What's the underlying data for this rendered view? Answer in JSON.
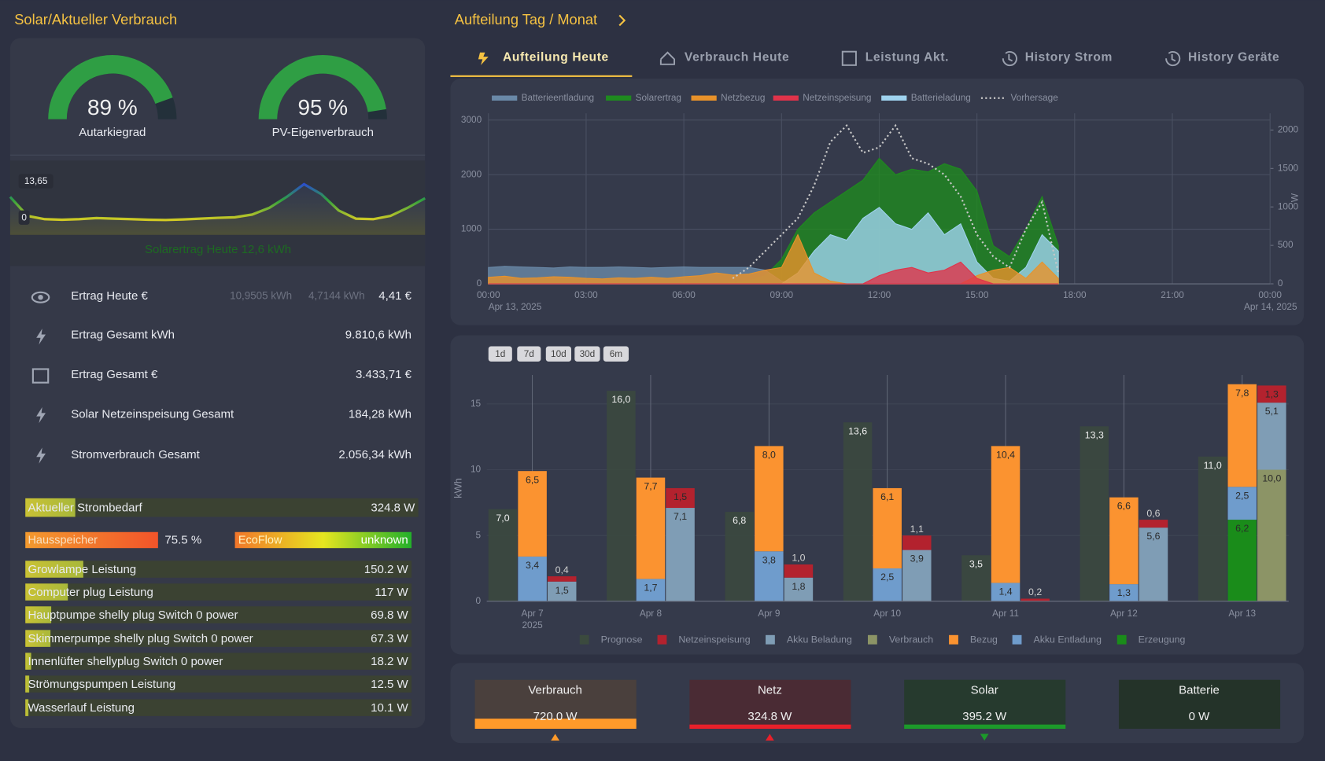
{
  "left_panel": {
    "title": "Solar/Aktueller Verbrauch",
    "gauges": [
      {
        "value": 89,
        "value_label": "89 %",
        "label": "Autarkiegrad"
      },
      {
        "value": 95,
        "value_label": "95 %",
        "label": "PV-Eigenverbrauch"
      }
    ],
    "sparkline": {
      "values": [
        9,
        2,
        0.8,
        0.6,
        0.8,
        1.2,
        1,
        0.8,
        0.6,
        0.5,
        0.7,
        1,
        1.3,
        1.5,
        2.5,
        5,
        9,
        13.65,
        10,
        4,
        1,
        0.8,
        2,
        5,
        8.5
      ],
      "yticks": [
        {
          "value": 0,
          "label": "0"
        },
        {
          "value": 13.65,
          "label": "13,65"
        }
      ],
      "caption": "Solarertrag Heute 12,6 kWh"
    },
    "rows": [
      {
        "label": "Ertrag Heute €",
        "details": [
          "10,9505 kWh",
          "4,7144 kWh"
        ],
        "value": "4,41 €"
      },
      {
        "label": "Ertrag Gesamt kWh",
        "value": "9.810,6 kWh"
      },
      {
        "label": "Ertrag Gesamt €",
        "value": "3.433,71 €"
      },
      {
        "label": "Solar Netzeinspeisung Gesamt",
        "value": "184,28 kWh"
      },
      {
        "label": "Stromverbrauch Gesamt",
        "value": "2.056,34 kWh"
      }
    ],
    "strombedarf": {
      "label": "Aktueller Strombedarf",
      "value": "324.8 W",
      "level": 12.7
    },
    "hausspeicher": {
      "label": "Hausspeicher",
      "value": "75.5 %"
    },
    "ecoflow": {
      "label": "EcoFlow",
      "value": "unknown"
    },
    "devices": [
      {
        "label": "Growlampe Leistung",
        "value": "150.2 W",
        "level": 15
      },
      {
        "label": "Computer plug Leistung",
        "value": "117 W",
        "level": 11
      },
      {
        "label": "Hauptpumpe shelly plug Switch 0 power",
        "value": "69.8 W",
        "level": 6.7
      },
      {
        "label": "Skimmerpumpe shelly plug Switch 0 power",
        "value": "67.3 W",
        "level": 6.5
      },
      {
        "label": "Innenlüfter shellyplug Switch 0 power",
        "value": "18.2 W",
        "level": 1.5
      },
      {
        "label": "Strömungspumpen Leistung",
        "value": "12.5 W",
        "level": 1
      },
      {
        "label": "Wasserlauf Leistung",
        "value": "10.1 W",
        "level": 0.8
      }
    ]
  },
  "header": {
    "title": "Aufteilung Tag / Monat"
  },
  "tabs": {
    "items": [
      "Aufteilung Heute",
      "Verbrauch Heute",
      "Leistung Akt.",
      "History Strom",
      "History Geräte"
    ],
    "active": 0
  },
  "power_chart": {
    "type": "area",
    "x": [
      0,
      0.5,
      1,
      1.5,
      2,
      2.5,
      3,
      3.5,
      4,
      4.5,
      5,
      5.5,
      6,
      6.5,
      7,
      7.5,
      8,
      8.5,
      9,
      9.5,
      10,
      10.5,
      11,
      11.5,
      12,
      12.5,
      13,
      13.5,
      14,
      14.5,
      15,
      15.5,
      16,
      16.5,
      17,
      17.5
    ],
    "series": [
      {
        "name": "Solarertrag",
        "color": "#1f8a1f",
        "values": [
          0,
          0,
          0,
          0,
          0,
          0,
          0,
          0,
          0,
          0,
          0,
          0,
          0,
          0,
          0,
          20,
          60,
          150,
          450,
          1000,
          1300,
          1500,
          1700,
          1900,
          2300,
          2000,
          2100,
          2050,
          2200,
          2100,
          1700,
          700,
          500,
          1000,
          1600,
          700
        ]
      },
      {
        "name": "Batterieentladung",
        "color": "#6a89a8",
        "values": [
          300,
          320,
          310,
          300,
          290,
          310,
          300,
          300,
          310,
          300,
          290,
          300,
          310,
          300,
          300,
          300,
          300,
          250,
          50,
          0,
          0,
          0,
          0,
          0,
          0,
          0,
          0,
          0,
          0,
          0,
          0,
          0,
          0,
          0,
          0,
          0
        ]
      },
      {
        "name": "Batterieladung",
        "color": "#9fd3ef",
        "values": [
          0,
          0,
          0,
          0,
          0,
          0,
          0,
          0,
          0,
          0,
          0,
          0,
          0,
          0,
          0,
          0,
          0,
          0,
          0,
          200,
          600,
          900,
          800,
          1200,
          1400,
          1100,
          1000,
          1300,
          900,
          1100,
          400,
          100,
          50,
          300,
          900,
          600
        ]
      },
      {
        "name": "Netzbezug",
        "color": "#e8922a",
        "values": [
          120,
          140,
          100,
          110,
          130,
          120,
          100,
          90,
          110,
          100,
          120,
          100,
          130,
          150,
          200,
          160,
          180,
          250,
          300,
          900,
          200,
          50,
          0,
          0,
          0,
          0,
          0,
          0,
          0,
          0,
          150,
          250,
          300,
          100,
          400,
          100
        ]
      },
      {
        "name": "Netzeinspeisung",
        "color": "#e0334a",
        "values": [
          0,
          0,
          0,
          0,
          0,
          0,
          0,
          0,
          0,
          0,
          0,
          0,
          0,
          0,
          0,
          0,
          0,
          0,
          0,
          0,
          0,
          0,
          0,
          0,
          150,
          250,
          300,
          200,
          250,
          400,
          100,
          0,
          0,
          0,
          0,
          0
        ]
      },
      {
        "name": "Vorhersage",
        "color": "#c8c8c8",
        "dashed": true,
        "values": [
          null,
          null,
          null,
          null,
          null,
          null,
          null,
          null,
          null,
          null,
          null,
          null,
          null,
          null,
          null,
          100,
          300,
          600,
          900,
          1200,
          1800,
          2600,
          2900,
          2400,
          2500,
          2900,
          2300,
          2200,
          2000,
          1600,
          900,
          500,
          300,
          1000,
          1500,
          200
        ]
      }
    ],
    "legend_order": [
      "Batterieentladung",
      "Solarertrag",
      "Netzbezug",
      "Netzeinspeisung",
      "Batterieladung",
      "Vorhersage"
    ],
    "xlim": [
      0,
      24
    ],
    "xticks": [
      {
        "value": 0,
        "label": "00:00"
      },
      {
        "value": 3,
        "label": "03:00"
      },
      {
        "value": 6,
        "label": "06:00"
      },
      {
        "value": 9,
        "label": "09:00"
      },
      {
        "value": 12,
        "label": "12:00"
      },
      {
        "value": 15,
        "label": "15:00"
      },
      {
        "value": 18,
        "label": "18:00"
      },
      {
        "value": 21,
        "label": "21:00"
      },
      {
        "value": 24,
        "label": "00:00"
      }
    ],
    "x_date_labels": [
      {
        "value": 0,
        "label": "Apr 13, 2025"
      },
      {
        "value": 24,
        "label": "Apr 14, 2025"
      }
    ],
    "ylim": [
      0,
      3000
    ],
    "yticks": [
      0,
      1000,
      2000,
      3000
    ],
    "y2lim": [
      0,
      2130
    ],
    "y2ticks": [
      0,
      500,
      1000,
      1500,
      2000
    ],
    "y2label": "W",
    "grid": true
  },
  "bar_chart": {
    "type": "bar",
    "buttons": [
      "1d",
      "7d",
      "10d",
      "30d",
      "6m"
    ],
    "categories": [
      "Apr 7",
      "Apr 8",
      "Apr 9",
      "Apr 10",
      "Apr 11",
      "Apr 12",
      "Apr 13"
    ],
    "year_label": "2025",
    "ylabel": "kWh",
    "ylim": [
      0,
      17.2
    ],
    "yticks": [
      0,
      5,
      10,
      15
    ],
    "columns": [
      [
        {
          "name": "Prognose",
          "color": "#3b4a3e",
          "values": [
            7.0,
            16.0,
            6.8,
            13.6,
            3.5,
            13.3,
            11.0
          ],
          "value_labels": [
            "7,0",
            "16,0",
            "6,8",
            "13,6",
            "3,5",
            "13,3",
            "11,0"
          ]
        }
      ],
      [
        {
          "name": "Erzeugung",
          "color": "#1a8c1a",
          "values": [
            null,
            null,
            null,
            null,
            null,
            null,
            6.2
          ],
          "value_labels": [
            null,
            null,
            null,
            null,
            null,
            null,
            "6,2"
          ]
        },
        {
          "name": "Akku Entladung",
          "color": "#6f9ccc",
          "values": [
            3.4,
            1.7,
            3.8,
            2.5,
            1.4,
            1.3,
            2.5
          ],
          "value_labels": [
            "3,4",
            "1,7",
            "3,8",
            "2,5",
            "1,4",
            "1,3",
            "2,5"
          ]
        },
        {
          "name": "Bezug",
          "color": "#fb9330",
          "values": [
            6.5,
            7.7,
            8.0,
            6.1,
            10.4,
            6.6,
            7.8
          ],
          "value_labels": [
            "6,5",
            "7,7",
            "8,0",
            "6,1",
            "10,4",
            "6,6",
            "7,8"
          ]
        }
      ],
      [
        {
          "name": "Verbrauch",
          "color": "#8c9466",
          "values": [
            null,
            null,
            null,
            null,
            null,
            null,
            10.0
          ],
          "value_labels": [
            null,
            null,
            null,
            null,
            null,
            null,
            "10,0"
          ]
        },
        {
          "name": "Akku Beladung",
          "color": "#7f9db5",
          "values": [
            1.5,
            7.1,
            1.8,
            3.9,
            null,
            5.6,
            5.1
          ],
          "value_labels": [
            "1,5",
            "7,1",
            "1,8",
            "3,9",
            null,
            "5,6",
            "5,1"
          ]
        },
        {
          "name": "Netzeinspeisung",
          "color": "#b3222e",
          "values": [
            0.4,
            1.5,
            1.0,
            1.1,
            0.2,
            0.6,
            1.3
          ],
          "value_labels": [
            "0,4",
            "1,5",
            "1,0",
            "1,1",
            "0,2",
            "0,6",
            "1,3"
          ]
        }
      ]
    ]
  },
  "tiles": [
    {
      "label": "Verbrauch",
      "value": "720.0 W",
      "color": "#ff9a2a",
      "arrow": "up"
    },
    {
      "label": "Netz",
      "value": "324.8 W",
      "color": "#e8202a",
      "arrow": "up"
    },
    {
      "label": "Solar",
      "value": "395.2 W",
      "color": "#1c9a2a",
      "arrow": "down"
    },
    {
      "label": "Batterie",
      "value": "0 W"
    }
  ]
}
